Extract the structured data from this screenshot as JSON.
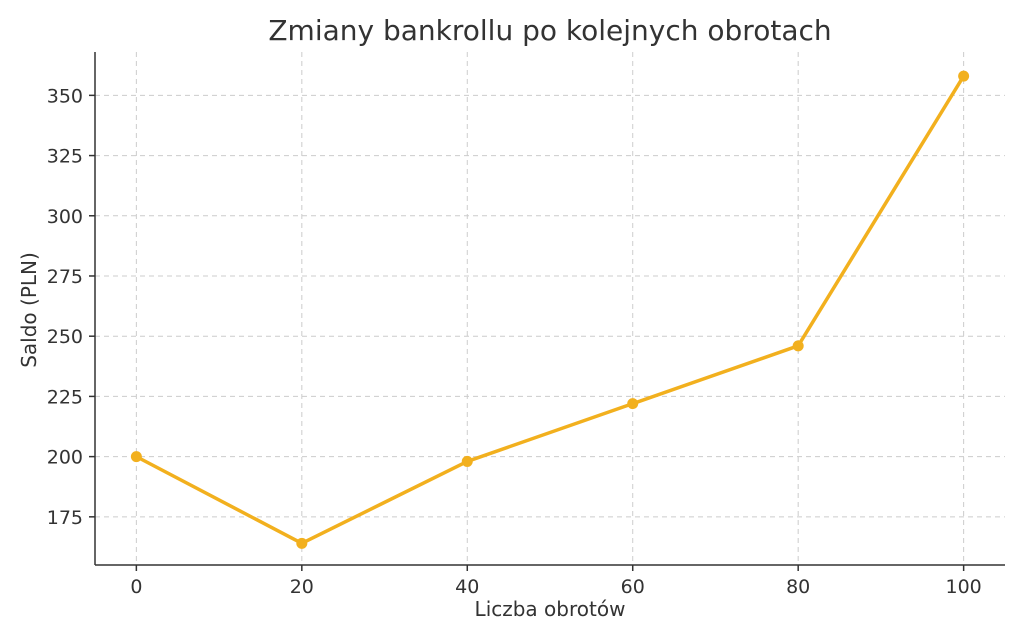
{
  "chart_data": {
    "type": "line",
    "title": "Zmiany bankrollu po kolejnych obrotach",
    "xlabel": "Liczba obrotów",
    "ylabel": "Saldo (PLN)",
    "x": [
      0,
      20,
      40,
      60,
      80,
      100
    ],
    "series": [
      {
        "values": [
          200,
          164,
          198,
          222,
          246,
          358
        ]
      }
    ],
    "xticks": [
      0,
      20,
      40,
      60,
      80,
      100
    ],
    "yticks": [
      175,
      200,
      225,
      250,
      275,
      300,
      325,
      350
    ],
    "xlim": [
      -5,
      105
    ],
    "ylim": [
      155,
      368
    ],
    "grid": true,
    "line_color": "#F2B01E"
  }
}
